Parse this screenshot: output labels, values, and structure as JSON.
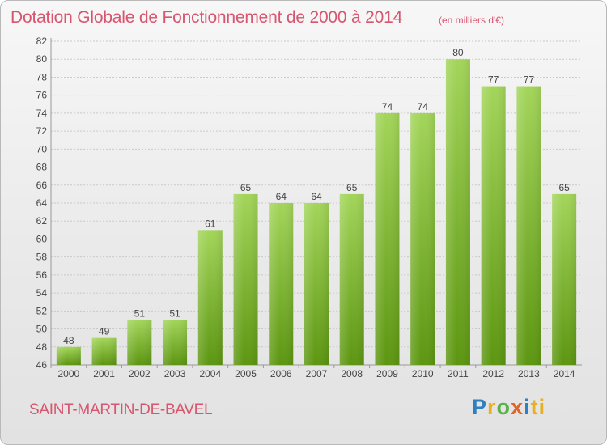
{
  "title": "Dotation Globale de Fonctionnement de 2000 à 2014",
  "unit_note": "(en milliers d'€)",
  "commune": "SAINT-MARTIN-DE-BAVEL",
  "logo": {
    "letters": [
      "P",
      "r",
      "o",
      "x",
      "i",
      "ti"
    ]
  },
  "colors": {
    "bar_top": "#9fd151",
    "bar_bottom": "#5f9a12",
    "title": "#d8556f"
  },
  "chart_data": {
    "type": "bar",
    "categories": [
      "2000",
      "2001",
      "2002",
      "2003",
      "2004",
      "2005",
      "2006",
      "2007",
      "2008",
      "2009",
      "2010",
      "2011",
      "2012",
      "2013",
      "2014"
    ],
    "values": [
      48,
      49,
      51,
      51,
      61,
      65,
      64,
      64,
      65,
      74,
      74,
      80,
      77,
      77,
      65
    ],
    "ylim": [
      46,
      82
    ],
    "yticks": [
      46,
      48,
      50,
      52,
      54,
      56,
      58,
      60,
      62,
      64,
      66,
      68,
      70,
      72,
      74,
      76,
      78,
      80,
      82
    ],
    "grid": true
  }
}
